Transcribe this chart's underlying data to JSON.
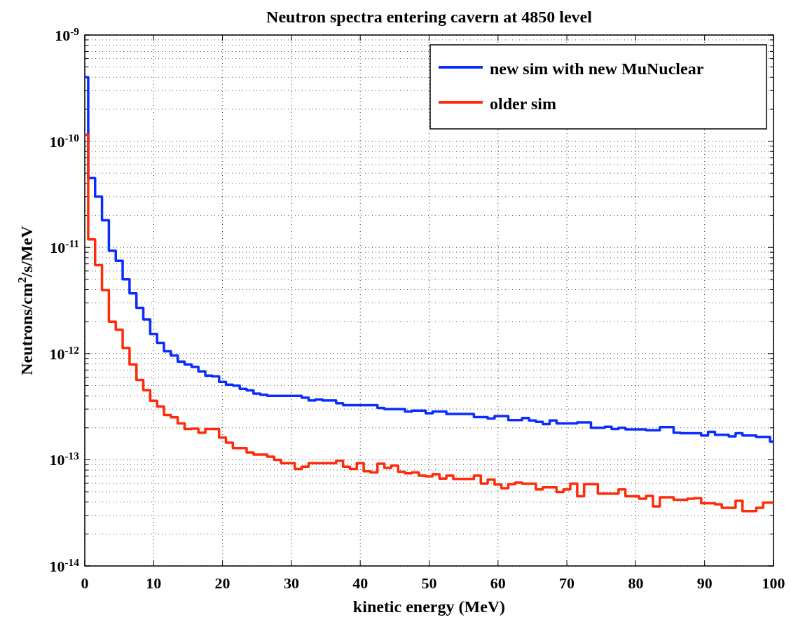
{
  "chart_data": {
    "type": "step",
    "title": "Neutron spectra entering cavern at 4850 level",
    "xlabel": "kinetic energy (MeV)",
    "ylabel": "Neutrons/cm$^{2}$/s/MeV",
    "x": [
      0,
      0.5,
      1.5,
      2.5,
      3.5,
      4.5,
      5.5,
      6.5,
      7.5,
      8.5,
      9.5,
      10.5,
      11.5,
      12.5,
      13.5,
      14.5,
      15.5,
      16.5,
      17.5,
      18.5,
      19.5,
      20.5,
      21.5,
      22.5,
      23.5,
      24.5,
      25.5,
      26.5,
      27.5,
      28.5,
      29.5,
      30.5,
      31.5,
      32.5,
      33.5,
      34.5,
      35.5,
      36.5,
      37.5,
      38.5,
      39.5,
      40.5,
      41.5,
      42.5,
      43.5,
      44.5,
      45.5,
      46.5,
      47.5,
      48.5,
      49.5,
      50.5,
      51.5,
      52.5,
      53.5,
      54.5,
      55.5,
      56.5,
      57.5,
      58.5,
      59.5,
      60.5,
      61.5,
      62.5,
      63.5,
      64.5,
      65.5,
      66.5,
      67.5,
      68.5,
      69.5,
      70.5,
      71.5,
      72.5,
      73.5,
      74.5,
      75.5,
      76.5,
      77.5,
      78.5,
      79.5,
      80.5,
      81.5,
      82.5,
      83.5,
      84.5,
      85.5,
      86.5,
      87.5,
      88.5,
      89.5,
      90.5,
      91.5,
      92.5,
      93.5,
      94.5,
      95.5,
      96.5,
      97.5,
      98.5,
      99.5
    ],
    "series": [
      {
        "name": "new sim with new MuNuclear",
        "color": "#0a2dff",
        "values": [
          4e-10,
          4.5e-11,
          3e-11,
          1.8e-11,
          9.3e-12,
          7.5e-12,
          5e-12,
          3.7e-12,
          2.7e-12,
          2.1e-12,
          1.53e-12,
          1.26e-12,
          1.05e-12,
          9.6e-13,
          8.4e-13,
          7.9e-13,
          7.5e-13,
          6.8e-13,
          6.2e-13,
          6.1e-13,
          5.4e-13,
          5.1e-13,
          5e-13,
          4.65e-13,
          4.5e-13,
          4.2e-13,
          4.1e-13,
          4e-13,
          4e-13,
          4e-13,
          4e-13,
          4e-13,
          3.85e-13,
          3.62e-13,
          3.7e-13,
          3.62e-13,
          3.62e-13,
          3.4e-13,
          3.26e-13,
          3.26e-13,
          3.26e-13,
          3.26e-13,
          3.26e-13,
          3.07e-13,
          3e-13,
          3e-13,
          3e-13,
          2.85e-13,
          2.9e-13,
          2.9e-13,
          2.74e-13,
          2.85e-13,
          2.85e-13,
          2.7e-13,
          2.7e-13,
          2.7e-13,
          2.7e-13,
          2.52e-13,
          2.52e-13,
          2.45e-13,
          2.58e-13,
          2.58e-13,
          2.36e-13,
          2.36e-13,
          2.47e-13,
          2.35e-13,
          2.28e-13,
          2.17e-13,
          2.35e-13,
          2.2e-13,
          2.2e-13,
          2.2e-13,
          2.25e-13,
          2.25e-13,
          2e-13,
          2e-13,
          2.05e-13,
          1.95e-13,
          2e-13,
          1.93e-13,
          1.93e-13,
          1.93e-13,
          1.9e-13,
          1.9e-13,
          2.03e-13,
          2.03e-13,
          1.8e-13,
          1.78e-13,
          1.78e-13,
          1.78e-13,
          1.69e-13,
          1.83e-13,
          1.72e-13,
          1.72e-13,
          1.66e-13,
          1.78e-13,
          1.69e-13,
          1.69e-13,
          1.64e-13,
          1.64e-13,
          1.48e-13
        ]
      },
      {
        "name": "older sim",
        "color": "#ff2a0a",
        "values": [
          1.15e-10,
          1.19e-11,
          6.8e-12,
          3.95e-12,
          2e-12,
          1.68e-12,
          1.13e-12,
          7.9e-13,
          5.65e-13,
          4.52e-13,
          3.59e-13,
          3.18e-13,
          2.64e-13,
          2.51e-13,
          2.2e-13,
          1.95e-13,
          1.96e-13,
          1.8e-13,
          1.95e-13,
          1.95e-13,
          1.62e-13,
          1.45e-13,
          1.29e-13,
          1.29e-13,
          1.17e-13,
          1.12e-13,
          1.12e-13,
          1.07e-13,
          1e-13,
          9.3e-14,
          9.3e-14,
          8.2e-14,
          8.6e-14,
          9.3e-14,
          9.3e-14,
          9.3e-14,
          9.3e-14,
          9.8e-14,
          8.6e-14,
          8.2e-14,
          9.3e-14,
          7.8e-14,
          7.6e-14,
          9.2e-14,
          8.4e-14,
          8.8e-14,
          7.7e-14,
          7.45e-14,
          7.6e-14,
          7.1e-14,
          7e-14,
          7.3e-14,
          6.65e-14,
          7.1e-14,
          6.6e-14,
          6.6e-14,
          6.6e-14,
          7.1e-14,
          5.97e-14,
          6.5e-14,
          5.85e-14,
          5.4e-14,
          5.9e-14,
          6.1e-14,
          5.96e-14,
          5.96e-14,
          5.26e-14,
          5.5e-14,
          5.5e-14,
          4.96e-14,
          5.26e-14,
          5.96e-14,
          4.54e-14,
          5.9e-14,
          5.9e-14,
          4.8e-14,
          4.8e-14,
          4.8e-14,
          5.26e-14,
          4.54e-14,
          4.54e-14,
          4.3e-14,
          4.57e-14,
          3.63e-14,
          4.43e-14,
          4.43e-14,
          4.2e-14,
          4.2e-14,
          4.3e-14,
          4.35e-14,
          3.9e-14,
          3.9e-14,
          3.8e-14,
          3.53e-14,
          3.53e-14,
          4.1e-14,
          3.28e-14,
          3.28e-14,
          3.53e-14,
          3.95e-14,
          3.95e-14
        ]
      }
    ],
    "xlim": [
      0,
      100
    ],
    "xticks": [
      0,
      10,
      20,
      30,
      40,
      50,
      60,
      70,
      80,
      90,
      100
    ],
    "ylim": [
      1e-14,
      1e-09
    ],
    "yticks": [
      {
        "value": 1e-14,
        "label": "10$^{-14}$"
      },
      {
        "value": 1e-13,
        "label": "10$^{-13}$"
      },
      {
        "value": 1e-12,
        "label": "10$^{-12}$"
      },
      {
        "value": 1e-11,
        "label": "10$^{-11}$"
      },
      {
        "value": 1e-10,
        "label": "10$^{-10}$"
      },
      {
        "value": 1e-09,
        "label": "10$^{-9}$"
      }
    ],
    "log": "y",
    "grid": true,
    "legend": "top right",
    "line_style": "solid"
  }
}
